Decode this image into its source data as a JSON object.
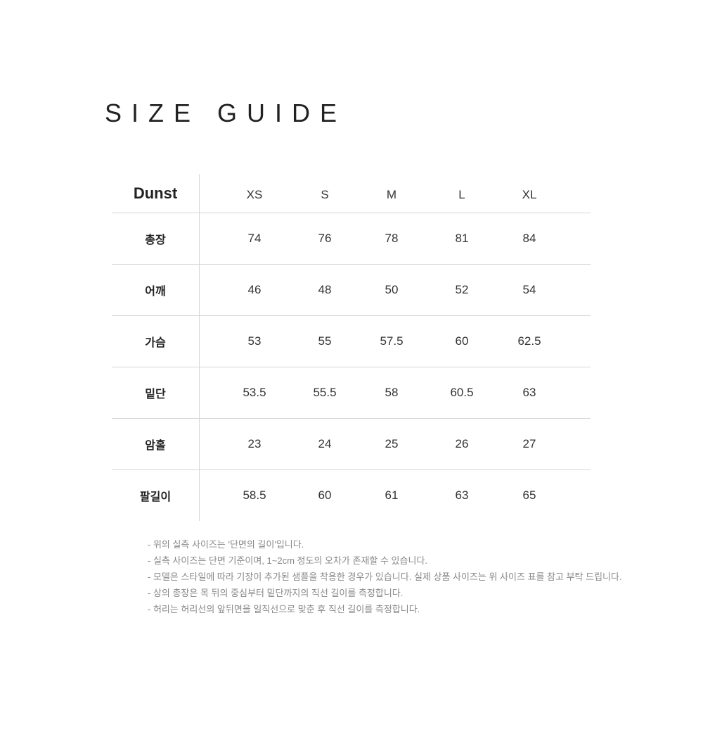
{
  "title": "SIZE GUIDE",
  "table": {
    "brand": "Dunst",
    "sizes": [
      "XS",
      "S",
      "M",
      "L",
      "XL"
    ],
    "rows": [
      {
        "label": "총장",
        "values": [
          "74",
          "76",
          "78",
          "81",
          "84"
        ]
      },
      {
        "label": "어깨",
        "values": [
          "46",
          "48",
          "50",
          "52",
          "54"
        ]
      },
      {
        "label": "가슴",
        "values": [
          "53",
          "55",
          "57.5",
          "60",
          "62.5"
        ]
      },
      {
        "label": "밑단",
        "values": [
          "53.5",
          "55.5",
          "58",
          "60.5",
          "63"
        ]
      },
      {
        "label": "암홀",
        "values": [
          "23",
          "24",
          "25",
          "26",
          "27"
        ]
      },
      {
        "label": "팔길이",
        "values": [
          "58.5",
          "60",
          "61",
          "63",
          "65"
        ]
      }
    ]
  },
  "notes": [
    "- 위의 실측 사이즈는 '단면의 길이'입니다.",
    "- 실측 사이즈는 단면 기준이며, 1~2cm 정도의 오차가 존재할 수 있습니다.",
    "- 모델은 스타일에 따라 기장이 추가된 샘플을 착용한 경우가 있습니다. 실제 상품 사이즈는 위 사이즈 표를 참고 부탁 드립니다.",
    "- 상의 총장은 목 뒤의 중심부터 밑단까지의 직선 길이를 측정합니다.",
    "- 허리는 허리선의 앞뒤면을 일직선으로 맞춘 후 직선 길이를 측정합니다."
  ]
}
